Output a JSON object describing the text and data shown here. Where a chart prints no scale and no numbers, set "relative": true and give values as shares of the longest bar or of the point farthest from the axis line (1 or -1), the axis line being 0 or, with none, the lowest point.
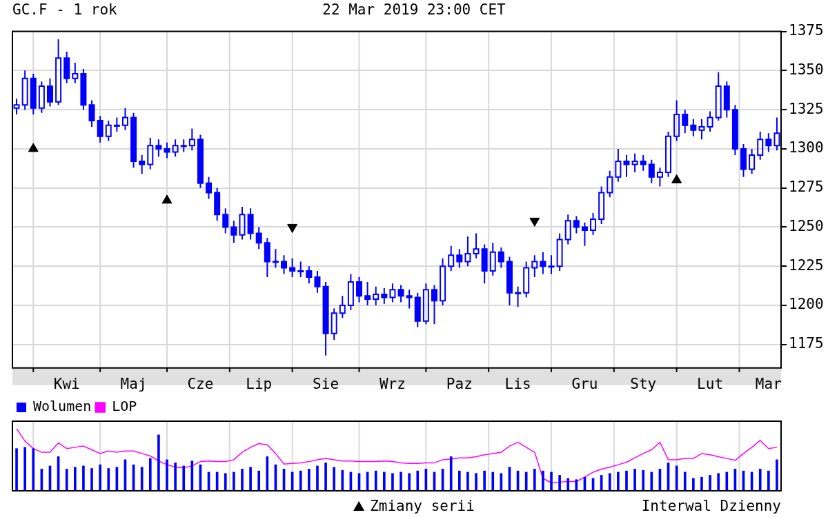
{
  "chart_data": [
    {
      "type": "candlestick",
      "title": "GC.F - 1 rok",
      "subtitle": "22 Mar 2019 23:00 CET",
      "color": "#0000ff",
      "categories": [
        null,
        null,
        null,
        null,
        null,
        null,
        "Kwi",
        null,
        null,
        null,
        null,
        null,
        null,
        null,
        "Maj",
        null,
        null,
        null,
        null,
        null,
        null,
        null,
        "Cze",
        null,
        null,
        null,
        null,
        null,
        null,
        "Lip",
        null,
        null,
        null,
        null,
        null,
        null,
        null,
        "Sie",
        null,
        null,
        null,
        null,
        null,
        null,
        null,
        "Wrz",
        null,
        null,
        null,
        null,
        null,
        null,
        null,
        "Paz",
        null,
        null,
        null,
        null,
        null,
        null,
        "Lis",
        null,
        null,
        null,
        null,
        null,
        null,
        null,
        "Gru",
        null,
        null,
        null,
        null,
        null,
        null,
        "Sty",
        null,
        null,
        null,
        null,
        null,
        null,
        null,
        "Lut",
        null,
        null,
        null,
        null,
        null,
        null,
        "Mar",
        null
      ],
      "ohlc": [
        [
          1326,
          1332,
          1322,
          1328
        ],
        [
          1328,
          1350,
          1325,
          1345
        ],
        [
          1345,
          1348,
          1322,
          1326
        ],
        [
          1326,
          1343,
          1323,
          1340
        ],
        [
          1340,
          1345,
          1327,
          1330
        ],
        [
          1330,
          1370,
          1328,
          1358
        ],
        [
          1358,
          1362,
          1342,
          1345
        ],
        [
          1345,
          1355,
          1342,
          1348
        ],
        [
          1348,
          1351,
          1325,
          1328
        ],
        [
          1328,
          1331,
          1314,
          1318
        ],
        [
          1318,
          1321,
          1304,
          1308
        ],
        [
          1308,
          1318,
          1305,
          1315
        ],
        [
          1315,
          1320,
          1311,
          1315
        ],
        [
          1315,
          1326,
          1312,
          1320
        ],
        [
          1320,
          1323,
          1288,
          1292
        ],
        [
          1292,
          1296,
          1284,
          1290
        ],
        [
          1290,
          1307,
          1287,
          1302
        ],
        [
          1302,
          1306,
          1295,
          1300
        ],
        [
          1300,
          1304,
          1294,
          1298
        ],
        [
          1298,
          1306,
          1295,
          1302
        ],
        [
          1302,
          1306,
          1298,
          1302
        ],
        [
          1302,
          1313,
          1299,
          1306
        ],
        [
          1306,
          1309,
          1275,
          1278
        ],
        [
          1278,
          1282,
          1268,
          1272
        ],
        [
          1272,
          1275,
          1254,
          1258
        ],
        [
          1258,
          1262,
          1246,
          1250
        ],
        [
          1250,
          1254,
          1240,
          1245
        ],
        [
          1245,
          1263,
          1242,
          1258
        ],
        [
          1258,
          1262,
          1242,
          1246
        ],
        [
          1246,
          1250,
          1236,
          1240
        ],
        [
          1240,
          1243,
          1218,
          1228
        ],
        [
          1228,
          1236,
          1224,
          1228
        ],
        [
          1228,
          1232,
          1220,
          1224
        ],
        [
          1224,
          1230,
          1218,
          1222
        ],
        [
          1222,
          1228,
          1218,
          1222
        ],
        [
          1222,
          1225,
          1214,
          1218
        ],
        [
          1218,
          1222,
          1208,
          1212
        ],
        [
          1212,
          1215,
          1168,
          1182
        ],
        [
          1182,
          1198,
          1178,
          1195
        ],
        [
          1195,
          1206,
          1192,
          1200
        ],
        [
          1200,
          1220,
          1197,
          1215
        ],
        [
          1215,
          1218,
          1202,
          1206
        ],
        [
          1206,
          1215,
          1200,
          1204
        ],
        [
          1204,
          1212,
          1200,
          1207
        ],
        [
          1207,
          1211,
          1201,
          1205
        ],
        [
          1205,
          1214,
          1202,
          1210
        ],
        [
          1210,
          1213,
          1202,
          1206
        ],
        [
          1206,
          1210,
          1198,
          1205
        ],
        [
          1205,
          1208,
          1186,
          1190
        ],
        [
          1190,
          1214,
          1188,
          1210
        ],
        [
          1210,
          1213,
          1188,
          1203
        ],
        [
          1203,
          1230,
          1200,
          1225
        ],
        [
          1225,
          1238,
          1222,
          1232
        ],
        [
          1232,
          1236,
          1224,
          1228
        ],
        [
          1228,
          1244,
          1225,
          1233
        ],
        [
          1233,
          1246,
          1230,
          1236
        ],
        [
          1236,
          1239,
          1214,
          1222
        ],
        [
          1222,
          1240,
          1219,
          1234
        ],
        [
          1234,
          1237,
          1224,
          1228
        ],
        [
          1228,
          1231,
          1200,
          1208
        ],
        [
          1208,
          1212,
          1199,
          1208
        ],
        [
          1208,
          1228,
          1205,
          1224
        ],
        [
          1224,
          1232,
          1218,
          1228
        ],
        [
          1228,
          1234,
          1220,
          1225
        ],
        [
          1225,
          1232,
          1220,
          1225
        ],
        [
          1225,
          1246,
          1222,
          1242
        ],
        [
          1242,
          1258,
          1239,
          1254
        ],
        [
          1254,
          1257,
          1246,
          1250
        ],
        [
          1250,
          1253,
          1238,
          1248
        ],
        [
          1248,
          1259,
          1245,
          1255
        ],
        [
          1255,
          1276,
          1252,
          1272
        ],
        [
          1272,
          1286,
          1269,
          1282
        ],
        [
          1282,
          1300,
          1279,
          1292
        ],
        [
          1292,
          1296,
          1282,
          1290
        ],
        [
          1290,
          1297,
          1285,
          1292
        ],
        [
          1292,
          1296,
          1286,
          1290
        ],
        [
          1290,
          1293,
          1278,
          1282
        ],
        [
          1282,
          1288,
          1276,
          1285
        ],
        [
          1285,
          1311,
          1282,
          1308
        ],
        [
          1308,
          1331,
          1305,
          1322
        ],
        [
          1322,
          1325,
          1310,
          1315
        ],
        [
          1315,
          1319,
          1308,
          1312
        ],
        [
          1312,
          1319,
          1306,
          1314
        ],
        [
          1314,
          1324,
          1311,
          1320
        ],
        [
          1320,
          1349,
          1318,
          1340
        ],
        [
          1340,
          1343,
          1320,
          1325
        ],
        [
          1325,
          1328,
          1296,
          1300
        ],
        [
          1300,
          1303,
          1282,
          1287
        ],
        [
          1287,
          1300,
          1284,
          1296
        ],
        [
          1296,
          1311,
          1293,
          1306
        ],
        [
          1306,
          1310,
          1298,
          1302
        ],
        [
          1302,
          1320,
          1299,
          1310
        ]
      ],
      "series": [
        {
          "type": "scatter",
          "name": "Zmiany serii",
          "color": "#000000",
          "marker": "triangle",
          "values": [
            null,
            null,
            1300,
            null,
            null,
            null,
            null,
            null,
            null,
            null,
            null,
            null,
            null,
            null,
            null,
            null,
            null,
            null,
            1267,
            null,
            null,
            null,
            null,
            null,
            null,
            null,
            null,
            null,
            null,
            null,
            null,
            null,
            null,
            null,
            null,
            null,
            null,
            null,
            null,
            null,
            null,
            null,
            null,
            null,
            null,
            null,
            null,
            null,
            null,
            null,
            null,
            null,
            null,
            null,
            null,
            null,
            null,
            null,
            null,
            null,
            null,
            null,
            null,
            null,
            null,
            null,
            null,
            null,
            null,
            null,
            null,
            null,
            null,
            null,
            null,
            null,
            null,
            null,
            null,
            1280,
            null,
            null,
            null,
            null,
            null,
            null,
            null,
            null,
            null,
            null,
            null,
            null
          ]
        },
        {
          "type": "scatter",
          "color": "#000000",
          "marker": "triangle-down",
          "values": [
            null,
            null,
            null,
            null,
            null,
            null,
            null,
            null,
            null,
            null,
            null,
            null,
            null,
            null,
            null,
            null,
            null,
            null,
            null,
            null,
            null,
            null,
            null,
            null,
            null,
            null,
            null,
            null,
            null,
            null,
            null,
            null,
            null,
            1250,
            null,
            null,
            null,
            null,
            null,
            null,
            null,
            null,
            null,
            null,
            null,
            null,
            null,
            null,
            null,
            null,
            null,
            null,
            null,
            null,
            null,
            null,
            null,
            null,
            null,
            null,
            null,
            null,
            1254,
            null,
            null,
            null,
            null,
            null,
            null,
            null,
            null,
            null,
            null,
            null,
            null,
            null,
            null,
            null,
            null,
            null,
            null,
            null,
            null,
            null,
            null,
            null,
            null,
            null,
            null,
            null,
            null,
            null
          ]
        }
      ],
      "ylim": [
        1160,
        1375
      ],
      "yticks": [
        1175,
        1200,
        1225,
        1250,
        1275,
        1300,
        1325,
        1350,
        1375
      ],
      "grid": true,
      "legend": "bottom",
      "annotations": [
        "Interwal Dzienny"
      ]
    },
    {
      "type": "bar",
      "relative": true,
      "tick_labels": false,
      "grid": "x",
      "legend": "top left",
      "categories": [
        null,
        null,
        null,
        null,
        null,
        null,
        null,
        null,
        null,
        null,
        null,
        null,
        null,
        null,
        null,
        null,
        null,
        null,
        null,
        null,
        null,
        null,
        null,
        null,
        null,
        null,
        null,
        null,
        null,
        null,
        null,
        null,
        null,
        null,
        null,
        null,
        null,
        null,
        null,
        null,
        null,
        null,
        null,
        null,
        null,
        null,
        null,
        null,
        null,
        null,
        null,
        null,
        null,
        null,
        null,
        null,
        null,
        null,
        null,
        null,
        null,
        null,
        null,
        null,
        null,
        null,
        null,
        null,
        null,
        null,
        null,
        null,
        null,
        null,
        null,
        null,
        null,
        null,
        null,
        null,
        null,
        null,
        null,
        null,
        null,
        null,
        null,
        null,
        null,
        null,
        null,
        null
      ],
      "series": [
        {
          "name": "Wolumen",
          "type": "bar",
          "color": "#0000ff",
          "values": [
            0.68,
            0.7,
            0.68,
            0.35,
            0.4,
            0.55,
            0.35,
            0.38,
            0.4,
            0.36,
            0.42,
            0.36,
            0.38,
            0.5,
            0.42,
            0.38,
            0.52,
            0.9,
            0.5,
            0.45,
            0.4,
            0.48,
            0.42,
            0.3,
            0.3,
            0.28,
            0.3,
            0.35,
            0.38,
            0.32,
            0.55,
            0.42,
            0.35,
            0.3,
            0.32,
            0.35,
            0.4,
            0.45,
            0.38,
            0.33,
            0.3,
            0.28,
            0.3,
            0.32,
            0.3,
            0.28,
            0.3,
            0.28,
            0.32,
            0.35,
            0.3,
            0.35,
            0.55,
            0.32,
            0.3,
            0.28,
            0.32,
            0.3,
            0.28,
            0.38,
            0.32,
            0.3,
            0.35,
            0.32,
            0.3,
            0.25,
            0.2,
            0.18,
            0.22,
            0.2,
            0.25,
            0.28,
            0.3,
            0.32,
            0.35,
            0.33,
            0.3,
            0.35,
            0.45,
            0.4,
            0.3,
            0.2,
            0.22,
            0.25,
            0.28,
            0.3,
            0.35,
            0.32,
            0.3,
            0.35,
            0.32,
            0.5
          ]
        },
        {
          "name": "LOP",
          "type": "line",
          "color": "#ff00ff",
          "values": [
            1,
            0.8,
            0.68,
            0.62,
            0.62,
            0.77,
            0.68,
            0.7,
            0.72,
            0.66,
            0.6,
            0.64,
            0.62,
            0.64,
            0.64,
            0.6,
            0.56,
            0.48,
            0.42,
            0.38,
            0.37,
            0.4,
            0.47,
            0.48,
            0.47,
            0.47,
            0.5,
            0.62,
            0.7,
            0.76,
            0.74,
            0.6,
            0.43,
            0.44,
            0.45,
            0.47,
            0.5,
            0.52,
            0.5,
            0.48,
            0.48,
            0.47,
            0.47,
            0.47,
            0.48,
            0.47,
            0.45,
            0.44,
            0.44,
            0.45,
            0.45,
            0.5,
            0.51,
            0.53,
            0.53,
            0.55,
            0.58,
            0.6,
            0.62,
            0.72,
            0.78,
            0.7,
            0.62,
            0.2,
            0.13,
            0.14,
            0.15,
            0.15,
            0.22,
            0.3,
            0.35,
            0.38,
            0.42,
            0.46,
            0.53,
            0.6,
            0.66,
            0.78,
            0.5,
            0.5,
            0.52,
            0.52,
            0.6,
            0.58,
            0.55,
            0.52,
            0.49,
            0.6,
            0.7,
            0.81,
            0.68,
            0.7
          ]
        }
      ]
    }
  ]
}
